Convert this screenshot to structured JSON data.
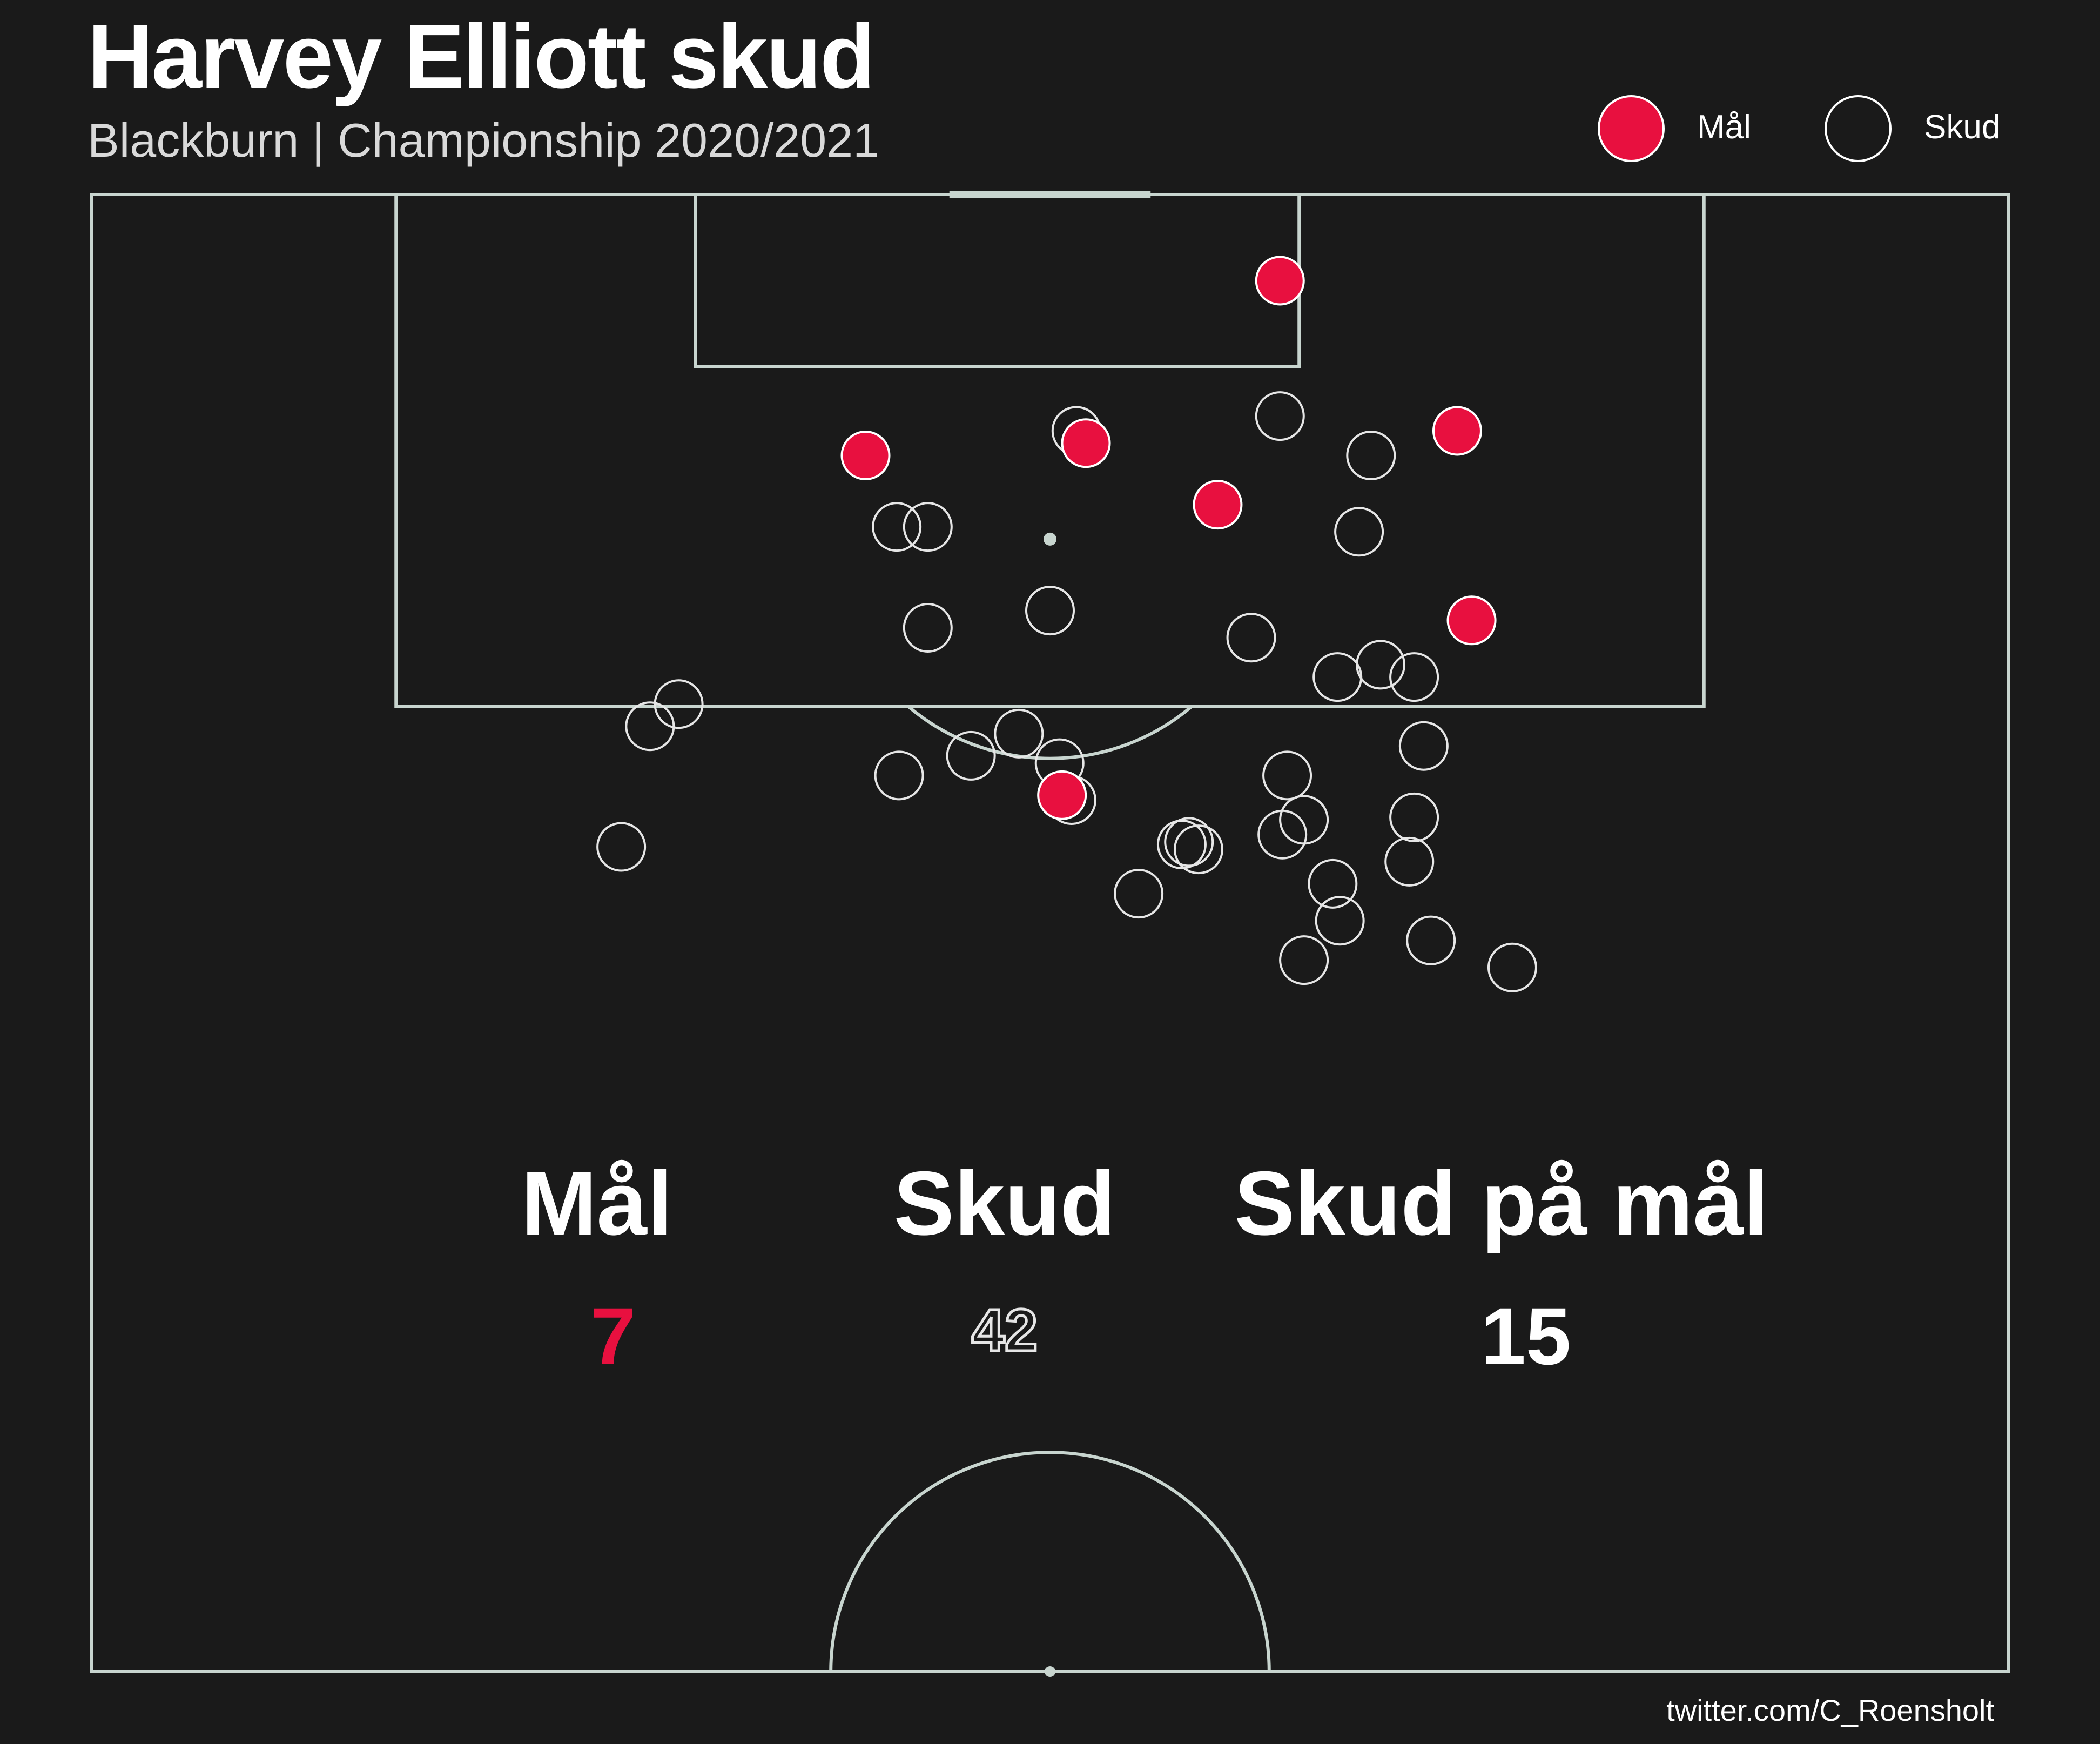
{
  "title": "Harvey Elliott skud",
  "subtitle": "Blackburn | Championship 2020/2021",
  "legend": {
    "goal_label": "Mål",
    "shot_label": "Skud"
  },
  "stats": [
    {
      "label": "Mål",
      "value": "7"
    },
    {
      "label": "Skud",
      "value": "42"
    },
    {
      "label": "Skud på mål",
      "value": "15"
    }
  ],
  "credit": "twitter.com/C_Roensholt",
  "colors": {
    "background": "#1a1a1a",
    "pitch_lines": "#c8d5cf",
    "goal": "#e8103f",
    "shot": "#e6e6e6",
    "text": "#ffffff"
  },
  "chart_data": {
    "type": "scatter",
    "title": "Harvey Elliott skud",
    "subtitle": "Blackburn | Championship 2020/2021",
    "pitch": "half-pitch vertical, 80 wide x 60 deep, goal at top",
    "xlim": [
      0,
      80
    ],
    "ylim": [
      0,
      60
    ],
    "legend_position": "top-right",
    "series": [
      {
        "name": "Mål",
        "points": [
          [
            49.6,
            3.5
          ],
          [
            32.3,
            10.6
          ],
          [
            41.5,
            10.1
          ],
          [
            47.0,
            12.6
          ],
          [
            57.0,
            9.6
          ],
          [
            57.6,
            17.3
          ],
          [
            40.5,
            24.4
          ]
        ]
      },
      {
        "name": "Skud",
        "points": [
          [
            49.6,
            9.0
          ],
          [
            41.1,
            9.6
          ],
          [
            53.4,
            10.6
          ],
          [
            33.6,
            13.5
          ],
          [
            34.9,
            13.5
          ],
          [
            52.9,
            13.7
          ],
          [
            34.9,
            17.6
          ],
          [
            40.0,
            16.9
          ],
          [
            48.4,
            18.0
          ],
          [
            53.8,
            19.1
          ],
          [
            52.0,
            19.6
          ],
          [
            55.2,
            19.6
          ],
          [
            24.5,
            20.7
          ],
          [
            23.3,
            21.6
          ],
          [
            38.7,
            21.9
          ],
          [
            36.7,
            22.8
          ],
          [
            40.4,
            23.1
          ],
          [
            33.7,
            23.6
          ],
          [
            40.9,
            24.6
          ],
          [
            49.9,
            23.6
          ],
          [
            55.6,
            22.4
          ],
          [
            50.6,
            25.4
          ],
          [
            55.2,
            25.3
          ],
          [
            22.1,
            26.5
          ],
          [
            46.2,
            26.6
          ],
          [
            45.8,
            26.3
          ],
          [
            45.5,
            26.4
          ],
          [
            49.7,
            26.0
          ],
          [
            55.0,
            27.1
          ],
          [
            51.8,
            28.0
          ],
          [
            43.7,
            28.4
          ],
          [
            52.1,
            29.5
          ],
          [
            50.6,
            31.1
          ],
          [
            55.9,
            30.3
          ],
          [
            59.3,
            31.4
          ]
        ]
      }
    ],
    "stats": {
      "goals": 7,
      "shots": 42,
      "shots_on_target": 15
    }
  }
}
